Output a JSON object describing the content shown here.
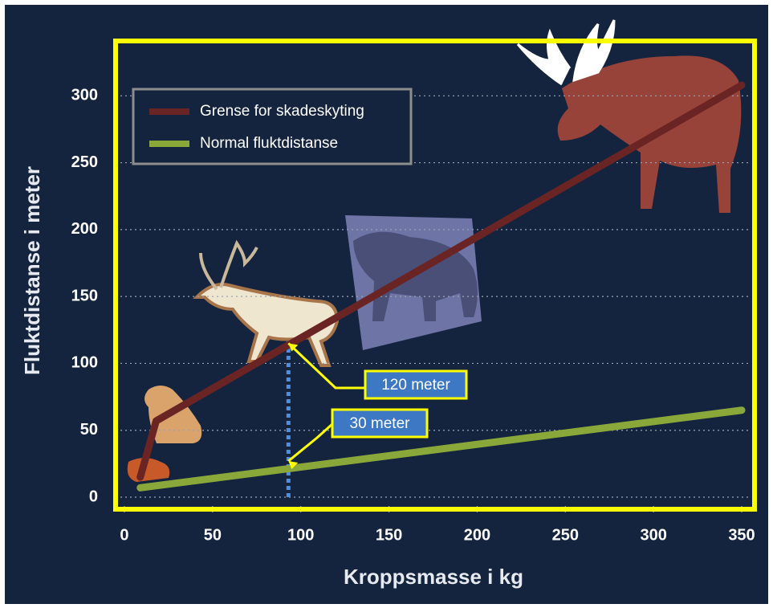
{
  "chart_data": {
    "type": "line",
    "x_label": "Kroppsmasse i kg",
    "y_label": "Fluktdistanse i meter",
    "xlim": [
      -5,
      355
    ],
    "ylim": [
      -9,
      341
    ],
    "xticks": [
      0,
      50,
      100,
      150,
      200,
      250,
      300,
      350
    ],
    "yticks": [
      0,
      50,
      100,
      150,
      200,
      250,
      300
    ],
    "grid": true,
    "legend": "upper left",
    "series": [
      {
        "name": "Grense for skadeskyting",
        "color": "#6b2424",
        "x": [
          9,
          18,
          350
        ],
        "values": [
          15,
          57,
          308
        ]
      },
      {
        "name": "Normal fluktdistanse",
        "color": "#8aa83a",
        "x": [
          9,
          350
        ],
        "values": [
          7,
          65
        ]
      }
    ],
    "reference_line": {
      "x": 93,
      "y": [
        0,
        117
      ],
      "color": "#4f8fe0"
    },
    "annotations": [
      {
        "text": "120 meter",
        "x": 93,
        "y": 115
      },
      {
        "text": "30 meter",
        "x": 93,
        "y": 27
      }
    ]
  }
}
